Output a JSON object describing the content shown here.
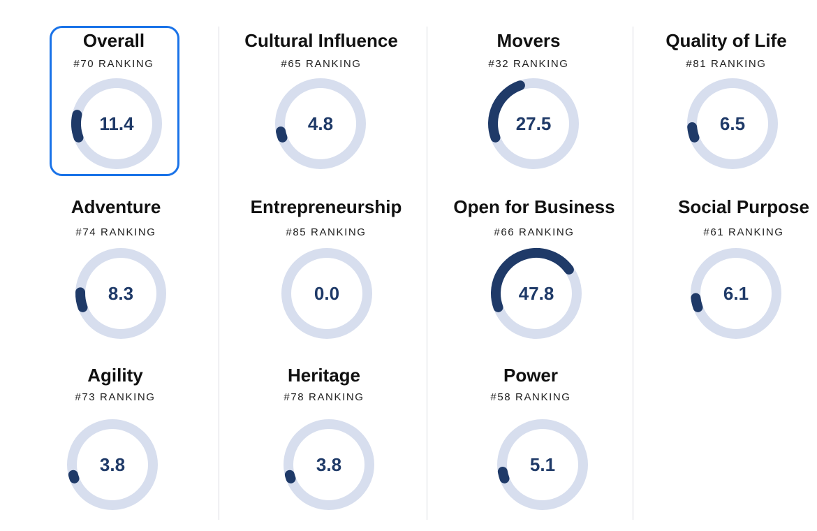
{
  "colors": {
    "track": "#d7deee",
    "fill": "#1f3a68",
    "selection": "#1a73e8",
    "divider": "#d9dbe0"
  },
  "selected_card": "overall",
  "cards": [
    {
      "id": "overall",
      "title": "Overall",
      "rank_text": "#70 RANKING",
      "value": "11.4",
      "fraction": 0.114
    },
    {
      "id": "cultural-influence",
      "title": "Cultural Influence",
      "rank_text": "#65 RANKING",
      "value": "4.8",
      "fraction": 0.048
    },
    {
      "id": "movers",
      "title": "Movers",
      "rank_text": "#32 RANKING",
      "value": "27.5",
      "fraction": 0.275
    },
    {
      "id": "quality-of-life",
      "title": "Quality of Life",
      "rank_text": "#81 RANKING",
      "value": "6.5",
      "fraction": 0.065
    },
    {
      "id": "adventure",
      "title": "Adventure",
      "rank_text": "#74 RANKING",
      "value": "8.3",
      "fraction": 0.083
    },
    {
      "id": "entrepreneurship",
      "title": "Entrepreneurship",
      "rank_text": "#85 RANKING",
      "value": "0.0",
      "fraction": 0.0
    },
    {
      "id": "open-for-business",
      "title": "Open for Business",
      "rank_text": "#66 RANKING",
      "value": "47.8",
      "fraction": 0.478
    },
    {
      "id": "social-purpose",
      "title": "Social Purpose",
      "rank_text": "#61 RANKING",
      "value": "6.1",
      "fraction": 0.061
    },
    {
      "id": "agility",
      "title": "Agility",
      "rank_text": "#73 RANKING",
      "value": "3.8",
      "fraction": 0.038
    },
    {
      "id": "heritage",
      "title": "Heritage",
      "rank_text": "#78 RANKING",
      "value": "3.8",
      "fraction": 0.038
    },
    {
      "id": "power",
      "title": "Power",
      "rank_text": "#58 RANKING",
      "value": "5.1",
      "fraction": 0.051
    }
  ]
}
